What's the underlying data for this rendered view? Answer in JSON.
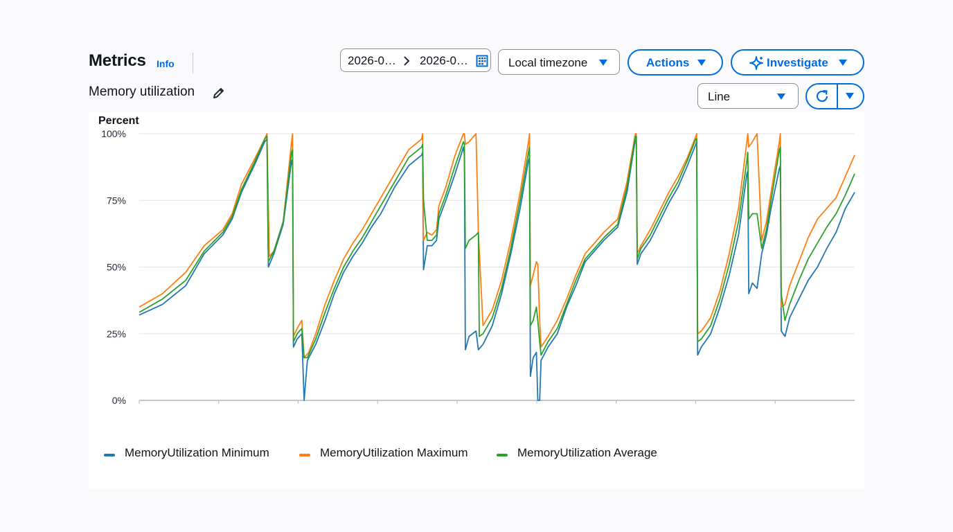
{
  "header": {
    "title": "Metrics",
    "info_link": "Info",
    "subtitle": "Memory utilization"
  },
  "toolbar": {
    "date_start": "2026-0…",
    "date_end": "2026-0…",
    "timezone": "Local timezone",
    "actions_label": "Actions",
    "investigate_label": "Investigate",
    "chart_type": "Line"
  },
  "colors": {
    "accent": "#006ce0",
    "minimum": "#1f77b4",
    "maximum": "#ff7f0e",
    "average": "#2ca02c",
    "grid": "#e4e4e8"
  },
  "icons": {
    "edit": "pencil-icon",
    "calendar": "calendar-icon",
    "range_separator": "chevron-right-icon",
    "investigate": "sparkle-icon",
    "refresh": "refresh-icon",
    "dropdown": "caret-down-icon"
  },
  "chart_data": {
    "type": "line",
    "ylabel": "Percent",
    "ylim": [
      0,
      100
    ],
    "yticks": [
      "0%",
      "25%",
      "50%",
      "75%",
      "100%"
    ],
    "grid": true,
    "legend_placement": "bottom-left",
    "series": [
      {
        "name": "MemoryUtilization Minimum",
        "color": "#1f77b4",
        "points": [
          [
            0,
            32
          ],
          [
            5,
            36
          ],
          [
            10,
            43
          ],
          [
            14,
            55
          ],
          [
            18,
            62
          ],
          [
            20,
            68
          ],
          [
            22,
            78
          ],
          [
            25,
            89
          ],
          [
            27,
            97
          ],
          [
            27.5,
            98
          ],
          [
            27.8,
            50
          ],
          [
            29,
            55
          ],
          [
            31,
            66
          ],
          [
            32.8,
            90
          ],
          [
            33,
            88
          ],
          [
            33.2,
            20
          ],
          [
            34,
            23
          ],
          [
            35,
            25
          ],
          [
            35.5,
            0
          ],
          [
            36.2,
            15
          ],
          [
            38,
            21
          ],
          [
            40,
            30
          ],
          [
            42,
            40
          ],
          [
            44,
            48
          ],
          [
            46,
            54
          ],
          [
            48,
            59
          ],
          [
            50,
            65
          ],
          [
            52,
            70
          ],
          [
            55,
            80
          ],
          [
            58,
            88
          ],
          [
            60.8,
            92
          ],
          [
            61,
            93
          ],
          [
            61.2,
            49
          ],
          [
            62,
            58
          ],
          [
            63,
            58
          ],
          [
            64,
            60
          ],
          [
            64.5,
            68
          ],
          [
            66,
            75
          ],
          [
            68,
            85
          ],
          [
            69.8,
            95
          ],
          [
            70,
            92
          ],
          [
            70.2,
            19
          ],
          [
            71,
            24
          ],
          [
            72.5,
            26
          ],
          [
            73,
            19
          ],
          [
            74,
            21
          ],
          [
            76,
            28
          ],
          [
            78,
            40
          ],
          [
            80,
            55
          ],
          [
            82,
            72
          ],
          [
            83.8,
            90
          ],
          [
            84,
            91
          ],
          [
            84.2,
            9
          ],
          [
            84.8,
            16
          ],
          [
            85.5,
            18
          ],
          [
            85.8,
            0
          ],
          [
            86.2,
            0
          ],
          [
            86.5,
            15
          ],
          [
            88,
            20
          ],
          [
            90,
            25
          ],
          [
            92,
            35
          ],
          [
            94,
            43
          ],
          [
            96,
            52
          ],
          [
            98,
            56
          ],
          [
            100,
            60
          ],
          [
            103,
            65
          ],
          [
            105,
            78
          ],
          [
            106.8,
            98
          ],
          [
            107,
            97
          ],
          [
            107.2,
            51
          ],
          [
            108,
            55
          ],
          [
            110,
            60
          ],
          [
            112,
            67
          ],
          [
            114,
            74
          ],
          [
            116,
            80
          ],
          [
            118,
            88
          ],
          [
            119.8,
            96
          ],
          [
            120,
            97
          ],
          [
            120.2,
            17
          ],
          [
            121,
            20
          ],
          [
            123,
            25
          ],
          [
            125,
            35
          ],
          [
            127,
            47
          ],
          [
            129,
            62
          ],
          [
            130.8,
            85
          ],
          [
            131,
            86
          ],
          [
            131.2,
            40
          ],
          [
            132,
            44
          ],
          [
            133,
            42
          ],
          [
            134,
            55
          ],
          [
            135,
            62
          ],
          [
            136,
            72
          ],
          [
            137.8,
            87
          ],
          [
            138,
            88
          ],
          [
            138.2,
            26
          ],
          [
            139,
            24
          ],
          [
            140,
            31
          ],
          [
            142,
            38
          ],
          [
            144,
            45
          ],
          [
            146,
            50
          ],
          [
            148,
            57
          ],
          [
            150,
            63
          ],
          [
            152,
            72
          ],
          [
            154,
            78
          ]
        ]
      },
      {
        "name": "MemoryUtilization Maximum",
        "color": "#ff7f0e",
        "points": [
          [
            0,
            35
          ],
          [
            5,
            40
          ],
          [
            10,
            48
          ],
          [
            14,
            58
          ],
          [
            18,
            64
          ],
          [
            20,
            70
          ],
          [
            22,
            81
          ],
          [
            25,
            91
          ],
          [
            27,
            98
          ],
          [
            27.5,
            100
          ],
          [
            28,
            54
          ],
          [
            29,
            56
          ],
          [
            31,
            67
          ],
          [
            32.8,
            97
          ],
          [
            33,
            100
          ],
          [
            33.2,
            24
          ],
          [
            34,
            27
          ],
          [
            35,
            30
          ],
          [
            35.5,
            16
          ],
          [
            36.5,
            18
          ],
          [
            38,
            25
          ],
          [
            40,
            36
          ],
          [
            42,
            45
          ],
          [
            44,
            53
          ],
          [
            46,
            59
          ],
          [
            48,
            64
          ],
          [
            50,
            70
          ],
          [
            52,
            76
          ],
          [
            55,
            85
          ],
          [
            58,
            94
          ],
          [
            60.8,
            98
          ],
          [
            61,
            100
          ],
          [
            61.2,
            60
          ],
          [
            62,
            63
          ],
          [
            63,
            62
          ],
          [
            64,
            64
          ],
          [
            64.5,
            73
          ],
          [
            66,
            80
          ],
          [
            68,
            92
          ],
          [
            69.8,
            100
          ],
          [
            70,
            100
          ],
          [
            70.2,
            96
          ],
          [
            71,
            97
          ],
          [
            72.5,
            100
          ],
          [
            73,
            63
          ],
          [
            74,
            28
          ],
          [
            76,
            34
          ],
          [
            78,
            45
          ],
          [
            80,
            60
          ],
          [
            82,
            78
          ],
          [
            83.8,
            97
          ],
          [
            84,
            100
          ],
          [
            84.2,
            43
          ],
          [
            84.8,
            47
          ],
          [
            85.5,
            52
          ],
          [
            85.8,
            51
          ],
          [
            86.2,
            30
          ],
          [
            86.5,
            20
          ],
          [
            88,
            24
          ],
          [
            90,
            30
          ],
          [
            92,
            38
          ],
          [
            94,
            47
          ],
          [
            96,
            55
          ],
          [
            98,
            59
          ],
          [
            100,
            63
          ],
          [
            103,
            68
          ],
          [
            105,
            82
          ],
          [
            106.8,
            100
          ],
          [
            107,
            100
          ],
          [
            107.2,
            55
          ],
          [
            108,
            58
          ],
          [
            110,
            64
          ],
          [
            112,
            71
          ],
          [
            114,
            78
          ],
          [
            116,
            84
          ],
          [
            118,
            91
          ],
          [
            119.8,
            99
          ],
          [
            120,
            100
          ],
          [
            120.2,
            25
          ],
          [
            121,
            26
          ],
          [
            123,
            31
          ],
          [
            125,
            41
          ],
          [
            127,
            55
          ],
          [
            129,
            72
          ],
          [
            130.8,
            97
          ],
          [
            131,
            100
          ],
          [
            131.2,
            95
          ],
          [
            132,
            97
          ],
          [
            133,
            100
          ],
          [
            134,
            60
          ],
          [
            135,
            67
          ],
          [
            136,
            78
          ],
          [
            137.8,
            97
          ],
          [
            138,
            100
          ],
          [
            138.2,
            35
          ],
          [
            139,
            36
          ],
          [
            140,
            43
          ],
          [
            142,
            52
          ],
          [
            144,
            61
          ],
          [
            146,
            68
          ],
          [
            148,
            72
          ],
          [
            150,
            76
          ],
          [
            152,
            84
          ],
          [
            154,
            92
          ]
        ]
      },
      {
        "name": "MemoryUtilization Average",
        "color": "#2ca02c",
        "points": [
          [
            0,
            33
          ],
          [
            5,
            38
          ],
          [
            10,
            45
          ],
          [
            14,
            56
          ],
          [
            18,
            63
          ],
          [
            20,
            69
          ],
          [
            22,
            79
          ],
          [
            25,
            90
          ],
          [
            27,
            98
          ],
          [
            27.5,
            99
          ],
          [
            27.8,
            52
          ],
          [
            29,
            56
          ],
          [
            31,
            67
          ],
          [
            32.8,
            93
          ],
          [
            33,
            94
          ],
          [
            33.2,
            22
          ],
          [
            34,
            25
          ],
          [
            35,
            27
          ],
          [
            35.5,
            16
          ],
          [
            36.2,
            16
          ],
          [
            38,
            23
          ],
          [
            40,
            33
          ],
          [
            42,
            42
          ],
          [
            44,
            50
          ],
          [
            46,
            56
          ],
          [
            48,
            61
          ],
          [
            50,
            67
          ],
          [
            52,
            73
          ],
          [
            55,
            82
          ],
          [
            58,
            91
          ],
          [
            60.8,
            95
          ],
          [
            61,
            96
          ],
          [
            61.2,
            75
          ],
          [
            62,
            60
          ],
          [
            63,
            60
          ],
          [
            64,
            62
          ],
          [
            64.5,
            70
          ],
          [
            66,
            77
          ],
          [
            68,
            88
          ],
          [
            69.8,
            97
          ],
          [
            70,
            96
          ],
          [
            70.2,
            57
          ],
          [
            71,
            60
          ],
          [
            72.5,
            62
          ],
          [
            73,
            63
          ],
          [
            73.2,
            24
          ],
          [
            74,
            25
          ],
          [
            76,
            31
          ],
          [
            78,
            42
          ],
          [
            80,
            57
          ],
          [
            82,
            75
          ],
          [
            83.8,
            93
          ],
          [
            84,
            95
          ],
          [
            84.2,
            28
          ],
          [
            84.8,
            30
          ],
          [
            85.5,
            35
          ],
          [
            85.8,
            30
          ],
          [
            86.2,
            22
          ],
          [
            86.5,
            17
          ],
          [
            88,
            22
          ],
          [
            90,
            27
          ],
          [
            92,
            36
          ],
          [
            94,
            45
          ],
          [
            96,
            53
          ],
          [
            98,
            57
          ],
          [
            100,
            61
          ],
          [
            103,
            66
          ],
          [
            105,
            80
          ],
          [
            106.8,
            99
          ],
          [
            107,
            99
          ],
          [
            107.2,
            53
          ],
          [
            108,
            57
          ],
          [
            110,
            62
          ],
          [
            112,
            69
          ],
          [
            114,
            76
          ],
          [
            116,
            82
          ],
          [
            118,
            90
          ],
          [
            119.8,
            98
          ],
          [
            120,
            98
          ],
          [
            120.2,
            22
          ],
          [
            121,
            23
          ],
          [
            123,
            28
          ],
          [
            125,
            38
          ],
          [
            127,
            51
          ],
          [
            129,
            67
          ],
          [
            130.8,
            90
          ],
          [
            131,
            93
          ],
          [
            131.2,
            68
          ],
          [
            132,
            70
          ],
          [
            133,
            70
          ],
          [
            134,
            57
          ],
          [
            135,
            64
          ],
          [
            136,
            75
          ],
          [
            137.8,
            94
          ],
          [
            138,
            95
          ],
          [
            138.2,
            40
          ],
          [
            139,
            30
          ],
          [
            140,
            36
          ],
          [
            142,
            45
          ],
          [
            144,
            53
          ],
          [
            146,
            59
          ],
          [
            148,
            65
          ],
          [
            150,
            70
          ],
          [
            152,
            77
          ],
          [
            154,
            85
          ]
        ]
      }
    ],
    "x_range": [
      0,
      154
    ],
    "x_tick_count": 9
  }
}
